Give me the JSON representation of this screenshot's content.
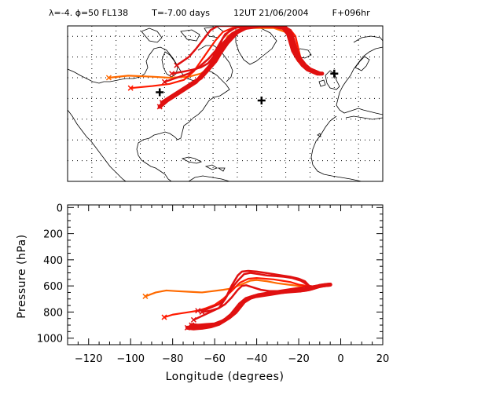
{
  "header": {
    "params": "λ=-4. ϕ=50 FL138",
    "time": "T=-7.00 days",
    "date": "12UT 21/06/2004",
    "forecast": "F+096hr"
  },
  "colors": {
    "dark_red": "#e01010",
    "red": "#ff1a00",
    "orange": "#ff6a00",
    "coast": "#000000",
    "grid": "#000000"
  },
  "chart_data": [
    {
      "type": "map",
      "projection": "lat-lon",
      "xlim": [
        -110,
        20
      ],
      "ylim": [
        0,
        75
      ],
      "grid": "dotted",
      "markers": [
        {
          "lon": -72,
          "lat": 43,
          "symbol": "+"
        },
        {
          "lon": -30,
          "lat": 39,
          "symbol": "+"
        },
        {
          "lon": 0,
          "lat": 52,
          "symbol": "+"
        }
      ],
      "series": [
        {
          "color": "orange",
          "lon": [
            -93,
            -85,
            -75,
            -68,
            -60,
            -55,
            -50,
            -48,
            -46,
            -44,
            -40,
            -35,
            -30,
            -25,
            -20,
            -18,
            -17,
            -15,
            -12,
            -10,
            -8,
            -6
          ],
          "lat": [
            50,
            51,
            50.5,
            50,
            50.5,
            52,
            56,
            60,
            65,
            70,
            73,
            74,
            74,
            74,
            72,
            68,
            63,
            58,
            55,
            54,
            53,
            52
          ]
        },
        {
          "color": "red",
          "lon": [
            -84,
            -75,
            -68,
            -62,
            -58,
            -55,
            -52,
            -49,
            -46,
            -42,
            -36,
            -28,
            -22,
            -18,
            -16,
            -15,
            -14,
            -12,
            -10,
            -8,
            -6
          ],
          "lat": [
            45,
            46,
            47,
            49,
            53,
            58,
            63,
            68,
            72,
            74,
            75,
            75,
            75,
            73,
            70,
            65,
            60,
            56,
            54,
            53,
            52
          ]
        },
        {
          "color": "dark_red",
          "lon": [
            -65,
            -60,
            -57,
            -55,
            -53,
            -51,
            -48,
            -45,
            -40,
            -35,
            -30,
            -26,
            -22,
            -19,
            -18,
            -17,
            -16,
            -14,
            -12,
            -10,
            -8,
            -6
          ],
          "lat": [
            56,
            60,
            64,
            67,
            70,
            73,
            75,
            75,
            75,
            75,
            75,
            75,
            75,
            73,
            70,
            66,
            62,
            58,
            55,
            54,
            53,
            52
          ]
        },
        {
          "color": "dark_red",
          "lon": [
            -70,
            -65,
            -60,
            -56,
            -52,
            -49,
            -47,
            -45,
            -41,
            -36,
            -30,
            -25,
            -21,
            -18,
            -17,
            -16,
            -15,
            -13,
            -11,
            -9,
            -7,
            -5
          ],
          "lat": [
            48,
            50,
            52,
            55,
            59,
            63,
            67,
            71,
            74,
            75,
            75,
            75,
            75,
            73,
            70,
            66,
            62,
            58,
            55,
            54,
            53,
            52
          ]
        },
        {
          "color": "dark_red",
          "lon": [
            -67,
            -62,
            -58,
            -55,
            -52,
            -50,
            -48,
            -46,
            -43,
            -39,
            -34,
            -28,
            -23,
            -20,
            -18,
            -17,
            -16,
            -14,
            -12,
            -10,
            -8,
            -6
          ],
          "lat": [
            52,
            53,
            54,
            55,
            57,
            60,
            64,
            69,
            73,
            75,
            75,
            75,
            75,
            73,
            70,
            66,
            62,
            58,
            55,
            54,
            53,
            52
          ]
        },
        {
          "color": "dark_red",
          "lon": [
            -72,
            -69,
            -65,
            -61,
            -57,
            -54,
            -51,
            -49,
            -46,
            -42,
            -37,
            -31,
            -25,
            -21,
            -19,
            -18,
            -17,
            -15,
            -13,
            -11,
            -9,
            -7,
            -5
          ],
          "lat": [
            36,
            39,
            42,
            45,
            48,
            52,
            56,
            61,
            66,
            71,
            74,
            75,
            75,
            74,
            71,
            67,
            63,
            59,
            56,
            54,
            53,
            52,
            52
          ]
        },
        {
          "color": "dark_red",
          "lon": [
            -71,
            -67,
            -63,
            -59,
            -55,
            -52,
            -49,
            -47,
            -44,
            -40,
            -35,
            -29,
            -23,
            -20,
            -18,
            -17,
            -16,
            -14,
            -12,
            -10,
            -8,
            -6
          ],
          "lat": [
            38,
            41,
            44,
            47,
            50,
            54,
            58,
            62,
            67,
            72,
            75,
            75,
            75,
            74,
            71,
            67,
            63,
            59,
            56,
            54,
            53,
            52
          ]
        }
      ]
    },
    {
      "type": "line",
      "xlabel": "Longitude  (degrees)",
      "ylabel": "Pressure  (hPa)",
      "xlim": [
        -130,
        20
      ],
      "ylim": [
        1050,
        -20
      ],
      "xticks": [
        -120,
        -100,
        -80,
        -60,
        -40,
        -20,
        0,
        20
      ],
      "yticks": [
        0,
        200,
        400,
        600,
        800,
        1000
      ],
      "start_marker": "x",
      "series": [
        {
          "color": "orange",
          "lon": [
            -93,
            -88,
            -83,
            -78,
            -72,
            -66,
            -61,
            -56,
            -52,
            -49,
            -46,
            -43,
            -40,
            -35,
            -30,
            -25,
            -20,
            -16,
            -13,
            -10,
            -7,
            -5
          ],
          "lat": [
            680,
            650,
            635,
            640,
            645,
            650,
            640,
            630,
            620,
            600,
            580,
            560,
            555,
            565,
            580,
            590,
            600,
            605,
            610,
            605,
            600,
            595
          ]
        },
        {
          "color": "red",
          "lon": [
            -84,
            -80,
            -76,
            -72,
            -68,
            -64,
            -60,
            -56,
            -52,
            -48,
            -44,
            -40,
            -36,
            -32,
            -28,
            -24,
            -20,
            -16,
            -14,
            -12,
            -10,
            -8,
            -5
          ],
          "lat": [
            840,
            820,
            810,
            800,
            790,
            770,
            745,
            700,
            640,
            575,
            545,
            540,
            545,
            550,
            560,
            570,
            590,
            600,
            605,
            600,
            595,
            592,
            590
          ]
        },
        {
          "color": "dark_red",
          "lon": [
            -68,
            -64,
            -61,
            -58,
            -55,
            -52,
            -49,
            -46,
            -43,
            -39,
            -35,
            -31,
            -27,
            -23,
            -19,
            -16,
            -14,
            -12,
            -10,
            -8,
            -5
          ],
          "lat": [
            790,
            780,
            760,
            740,
            700,
            620,
            560,
            510,
            500,
            510,
            520,
            525,
            530,
            540,
            560,
            590,
            610,
            600,
            595,
            592,
            590
          ]
        },
        {
          "color": "dark_red",
          "lon": [
            -70,
            -66,
            -62,
            -58,
            -55,
            -52,
            -49,
            -47,
            -44,
            -40,
            -36,
            -32,
            -28,
            -24,
            -20,
            -17,
            -15,
            -13,
            -11,
            -9,
            -6
          ],
          "lat": [
            860,
            830,
            800,
            770,
            700,
            600,
            520,
            490,
            485,
            490,
            500,
            510,
            520,
            530,
            545,
            565,
            600,
            605,
            600,
            595,
            590
          ]
        },
        {
          "color": "dark_red",
          "lon": [
            -66,
            -62,
            -58,
            -55,
            -52,
            -49,
            -47,
            -45,
            -42,
            -38,
            -34,
            -30,
            -26,
            -22,
            -18,
            -16,
            -14,
            -12,
            -10,
            -8,
            -5
          ],
          "lat": [
            800,
            790,
            770,
            740,
            690,
            630,
            600,
            595,
            610,
            630,
            640,
            640,
            630,
            620,
            610,
            605,
            605,
            600,
            595,
            592,
            590
          ]
        },
        {
          "color": "dark_red",
          "lon": [
            -73,
            -70,
            -66,
            -62,
            -58,
            -55,
            -52,
            -50,
            -48,
            -45,
            -41,
            -37,
            -33,
            -29,
            -25,
            -21,
            -17,
            -14,
            -12,
            -10,
            -8,
            -5
          ],
          "lat": [
            920,
            925,
            920,
            910,
            890,
            860,
            820,
            780,
            740,
            700,
            680,
            670,
            660,
            650,
            640,
            635,
            630,
            620,
            610,
            600,
            595,
            590
          ]
        },
        {
          "color": "dark_red",
          "lon": [
            -71,
            -68,
            -64,
            -60,
            -56,
            -53,
            -50,
            -48,
            -46,
            -43,
            -39,
            -35,
            -31,
            -27,
            -23,
            -19,
            -15,
            -13,
            -11,
            -9,
            -7,
            -5
          ],
          "lat": [
            900,
            905,
            900,
            895,
            870,
            840,
            800,
            760,
            720,
            690,
            670,
            660,
            650,
            645,
            640,
            635,
            625,
            615,
            605,
            598,
            593,
            590
          ]
        }
      ]
    }
  ]
}
